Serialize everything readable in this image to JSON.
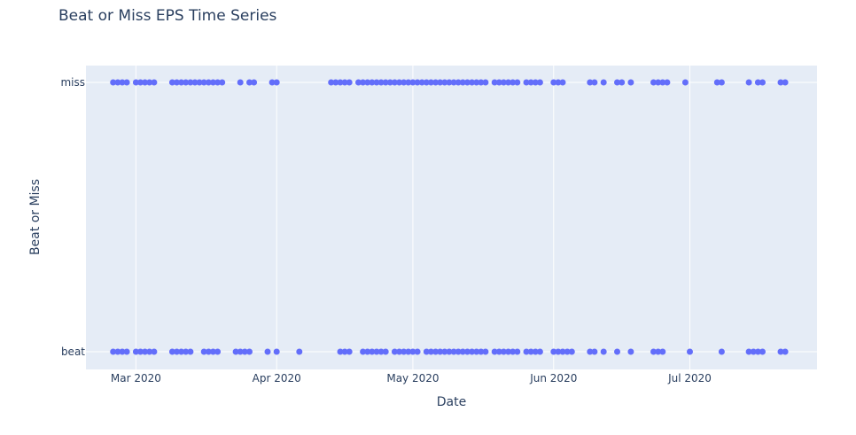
{
  "chart_data": {
    "type": "scatter",
    "title": "Beat or Miss EPS Time Series",
    "xlabel": "Date",
    "ylabel": "Beat or Miss",
    "x_ticks": [
      "2020-03-01",
      "2020-04-01",
      "2020-05-01",
      "2020-06-01",
      "2020-07-01"
    ],
    "x_tick_labels": [
      "Mar 2020",
      "Apr 2020",
      "May 2020",
      "Jun 2020",
      "Jul 2020"
    ],
    "xlim": [
      "2020-02-19",
      "2020-07-29"
    ],
    "categories": [
      "beat",
      "miss"
    ],
    "grid": true,
    "colors": {
      "marker": "#636efa",
      "plot_bg": "#e5ecf6",
      "grid": "#ffffff",
      "text": "#2a3f5f"
    },
    "series": [
      {
        "y": "miss",
        "x": [
          "2020-02-25",
          "2020-02-26",
          "2020-02-27",
          "2020-02-28",
          "2020-03-01",
          "2020-03-02",
          "2020-03-03",
          "2020-03-04",
          "2020-03-05",
          "2020-03-09",
          "2020-03-10",
          "2020-03-11",
          "2020-03-12",
          "2020-03-13",
          "2020-03-14",
          "2020-03-15",
          "2020-03-16",
          "2020-03-17",
          "2020-03-18",
          "2020-03-19",
          "2020-03-20",
          "2020-03-24",
          "2020-03-26",
          "2020-03-27",
          "2020-03-31",
          "2020-04-01",
          "2020-04-13",
          "2020-04-14",
          "2020-04-15",
          "2020-04-16",
          "2020-04-17",
          "2020-04-19",
          "2020-04-20",
          "2020-04-21",
          "2020-04-22",
          "2020-04-23",
          "2020-04-24",
          "2020-04-25",
          "2020-04-26",
          "2020-04-27",
          "2020-04-28",
          "2020-04-29",
          "2020-04-30",
          "2020-05-01",
          "2020-05-02",
          "2020-05-03",
          "2020-05-04",
          "2020-05-05",
          "2020-05-06",
          "2020-05-07",
          "2020-05-08",
          "2020-05-09",
          "2020-05-10",
          "2020-05-11",
          "2020-05-12",
          "2020-05-13",
          "2020-05-14",
          "2020-05-15",
          "2020-05-16",
          "2020-05-17",
          "2020-05-19",
          "2020-05-20",
          "2020-05-21",
          "2020-05-22",
          "2020-05-23",
          "2020-05-24",
          "2020-05-26",
          "2020-05-27",
          "2020-05-28",
          "2020-05-29",
          "2020-06-01",
          "2020-06-02",
          "2020-06-03",
          "2020-06-09",
          "2020-06-10",
          "2020-06-12",
          "2020-06-15",
          "2020-06-16",
          "2020-06-18",
          "2020-06-23",
          "2020-06-24",
          "2020-06-25",
          "2020-06-26",
          "2020-06-30",
          "2020-07-07",
          "2020-07-08",
          "2020-07-14",
          "2020-07-16",
          "2020-07-17",
          "2020-07-21",
          "2020-07-22"
        ]
      },
      {
        "y": "beat",
        "x": [
          "2020-02-25",
          "2020-02-26",
          "2020-02-27",
          "2020-02-28",
          "2020-03-01",
          "2020-03-02",
          "2020-03-03",
          "2020-03-04",
          "2020-03-05",
          "2020-03-09",
          "2020-03-10",
          "2020-03-11",
          "2020-03-12",
          "2020-03-13",
          "2020-03-16",
          "2020-03-17",
          "2020-03-18",
          "2020-03-19",
          "2020-03-23",
          "2020-03-24",
          "2020-03-25",
          "2020-03-26",
          "2020-03-30",
          "2020-04-01",
          "2020-04-06",
          "2020-04-15",
          "2020-04-16",
          "2020-04-17",
          "2020-04-20",
          "2020-04-21",
          "2020-04-22",
          "2020-04-23",
          "2020-04-24",
          "2020-04-25",
          "2020-04-27",
          "2020-04-28",
          "2020-04-29",
          "2020-04-30",
          "2020-05-01",
          "2020-05-02",
          "2020-05-04",
          "2020-05-05",
          "2020-05-06",
          "2020-05-07",
          "2020-05-08",
          "2020-05-09",
          "2020-05-10",
          "2020-05-11",
          "2020-05-12",
          "2020-05-13",
          "2020-05-14",
          "2020-05-15",
          "2020-05-16",
          "2020-05-17",
          "2020-05-19",
          "2020-05-20",
          "2020-05-21",
          "2020-05-22",
          "2020-05-23",
          "2020-05-24",
          "2020-05-26",
          "2020-05-27",
          "2020-05-28",
          "2020-05-29",
          "2020-06-01",
          "2020-06-02",
          "2020-06-03",
          "2020-06-04",
          "2020-06-05",
          "2020-06-09",
          "2020-06-10",
          "2020-06-12",
          "2020-06-15",
          "2020-06-18",
          "2020-06-23",
          "2020-06-24",
          "2020-06-25",
          "2020-07-01",
          "2020-07-08",
          "2020-07-14",
          "2020-07-15",
          "2020-07-16",
          "2020-07-17",
          "2020-07-21",
          "2020-07-22"
        ]
      }
    ]
  }
}
